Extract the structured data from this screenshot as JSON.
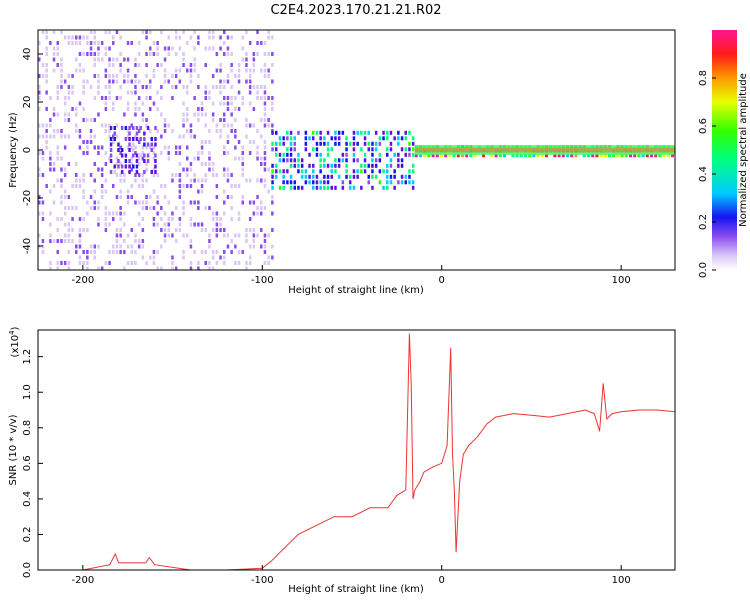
{
  "title": "C2E4.2023.170.21.21.R02",
  "colors": {
    "snr_line": "#ee3333",
    "background": "#ffffff",
    "colormap": [
      "#ffffff",
      "#d9c8f5",
      "#8a4df0",
      "#5a12e6",
      "#1515f0",
      "#00ccff",
      "#00ff80",
      "#33ff00",
      "#e6ff00",
      "#ff9900",
      "#ff1a1a",
      "#ff1493"
    ]
  },
  "chart_data": [
    {
      "type": "heatmap",
      "xlabel": "Height of straight line (km)",
      "ylabel": "Frequency (Hz)",
      "xlim": [
        -225,
        130
      ],
      "ylim": [
        -50,
        50
      ],
      "xticks": [
        -200,
        -100,
        0,
        100
      ],
      "yticks": [
        -40,
        -20,
        0,
        20,
        40
      ],
      "colorbar": {
        "label": "Normalized spectral amplitude",
        "range": [
          0,
          1
        ],
        "ticks": [
          "0.0",
          "0.2",
          "0.4",
          "0.6",
          "0.8"
        ]
      },
      "regions": [
        {
          "x": [
            -225,
            -95
          ],
          "freq": [
            -50,
            50
          ],
          "level": 0.12
        },
        {
          "x": [
            -185,
            -160
          ],
          "freq": [
            -10,
            10
          ],
          "level": 0.25
        },
        {
          "x": [
            -95,
            -15
          ],
          "freq": [
            -15,
            8
          ],
          "level": 0.4
        },
        {
          "x": [
            -15,
            130
          ],
          "freq": [
            -2,
            2
          ],
          "level": 0.8
        }
      ]
    },
    {
      "type": "line",
      "xlabel": "Height of straight line (km)",
      "ylabel": "SNR (10 * v/v)",
      "scale_label": "(x10",
      "scale_exp": "4",
      "scale_close": ")",
      "xlim": [
        -225,
        130
      ],
      "ylim": [
        0,
        1.35
      ],
      "xticks": [
        -200,
        -100,
        0,
        100
      ],
      "yticks": [
        "0.0",
        "0.2",
        "0.4",
        "0.6",
        "0.8",
        "1.0",
        "1.2"
      ],
      "series": [
        {
          "x": [
            -225,
            -200,
            -185,
            -182,
            -180,
            -165,
            -163,
            -160,
            -140,
            -120,
            -100,
            -95,
            -90,
            -85,
            -80,
            -70,
            -60,
            -50,
            -40,
            -30,
            -25,
            -20,
            -18,
            -17,
            -16,
            -15,
            -12,
            -10,
            -5,
            0,
            3,
            5,
            6,
            7,
            8,
            10,
            12,
            15,
            20,
            25,
            30,
            40,
            50,
            60,
            70,
            80,
            85,
            88,
            90,
            92,
            95,
            100,
            110,
            120,
            130
          ],
          "values": [
            0.0,
            0.0,
            0.03,
            0.09,
            0.04,
            0.04,
            0.07,
            0.03,
            0.0,
            0.0,
            0.01,
            0.05,
            0.1,
            0.15,
            0.2,
            0.25,
            0.3,
            0.3,
            0.35,
            0.35,
            0.42,
            0.45,
            1.33,
            1.05,
            0.4,
            0.45,
            0.5,
            0.55,
            0.58,
            0.6,
            0.7,
            1.25,
            0.65,
            0.45,
            0.1,
            0.5,
            0.65,
            0.7,
            0.75,
            0.82,
            0.86,
            0.88,
            0.87,
            0.86,
            0.88,
            0.9,
            0.88,
            0.78,
            1.05,
            0.85,
            0.88,
            0.89,
            0.9,
            0.9,
            0.89
          ]
        }
      ]
    }
  ]
}
